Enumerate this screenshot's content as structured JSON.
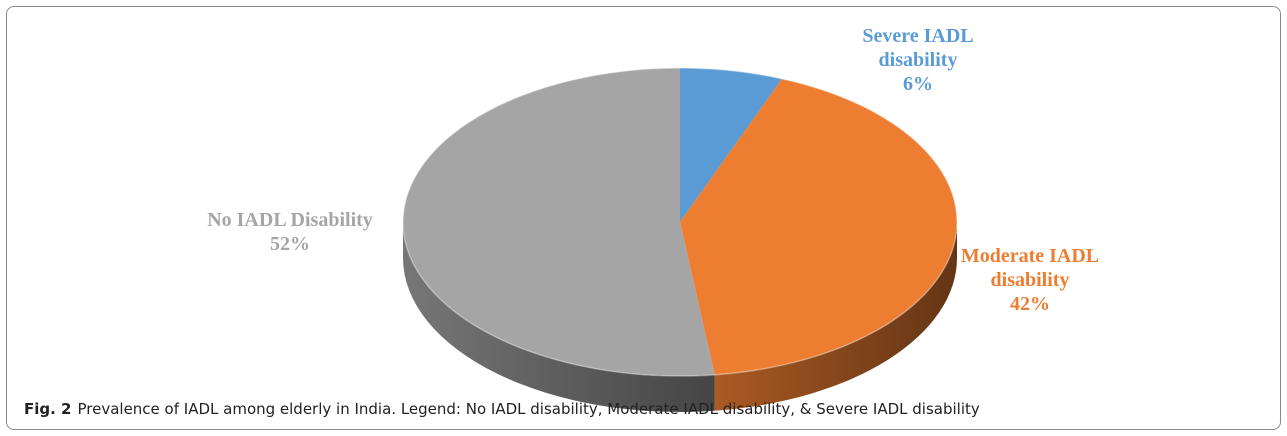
{
  "caption": {
    "figure_number": "Fig. 2",
    "text": "Prevalence of IADL among elderly in India. Legend: No IADL disability, Moderate IADL disability, & Severe IADL disability"
  },
  "chart_data": {
    "type": "pie",
    "style": "3d",
    "title": "",
    "categories": [
      "Severe IADL disability",
      "Moderate IADL disability",
      "No IADL Disability"
    ],
    "values": [
      6,
      42,
      52
    ],
    "unit": "%",
    "colors": [
      "#5b9bd5",
      "#ed7d31",
      "#a5a5a5"
    ],
    "data_labels": [
      {
        "lines": [
          "Severe IADL",
          "disability",
          "6%"
        ]
      },
      {
        "lines": [
          "Moderate IADL",
          "disability",
          "42%"
        ]
      },
      {
        "lines": [
          "No IADL Disability",
          "52%"
        ]
      }
    ],
    "legend": "none"
  }
}
